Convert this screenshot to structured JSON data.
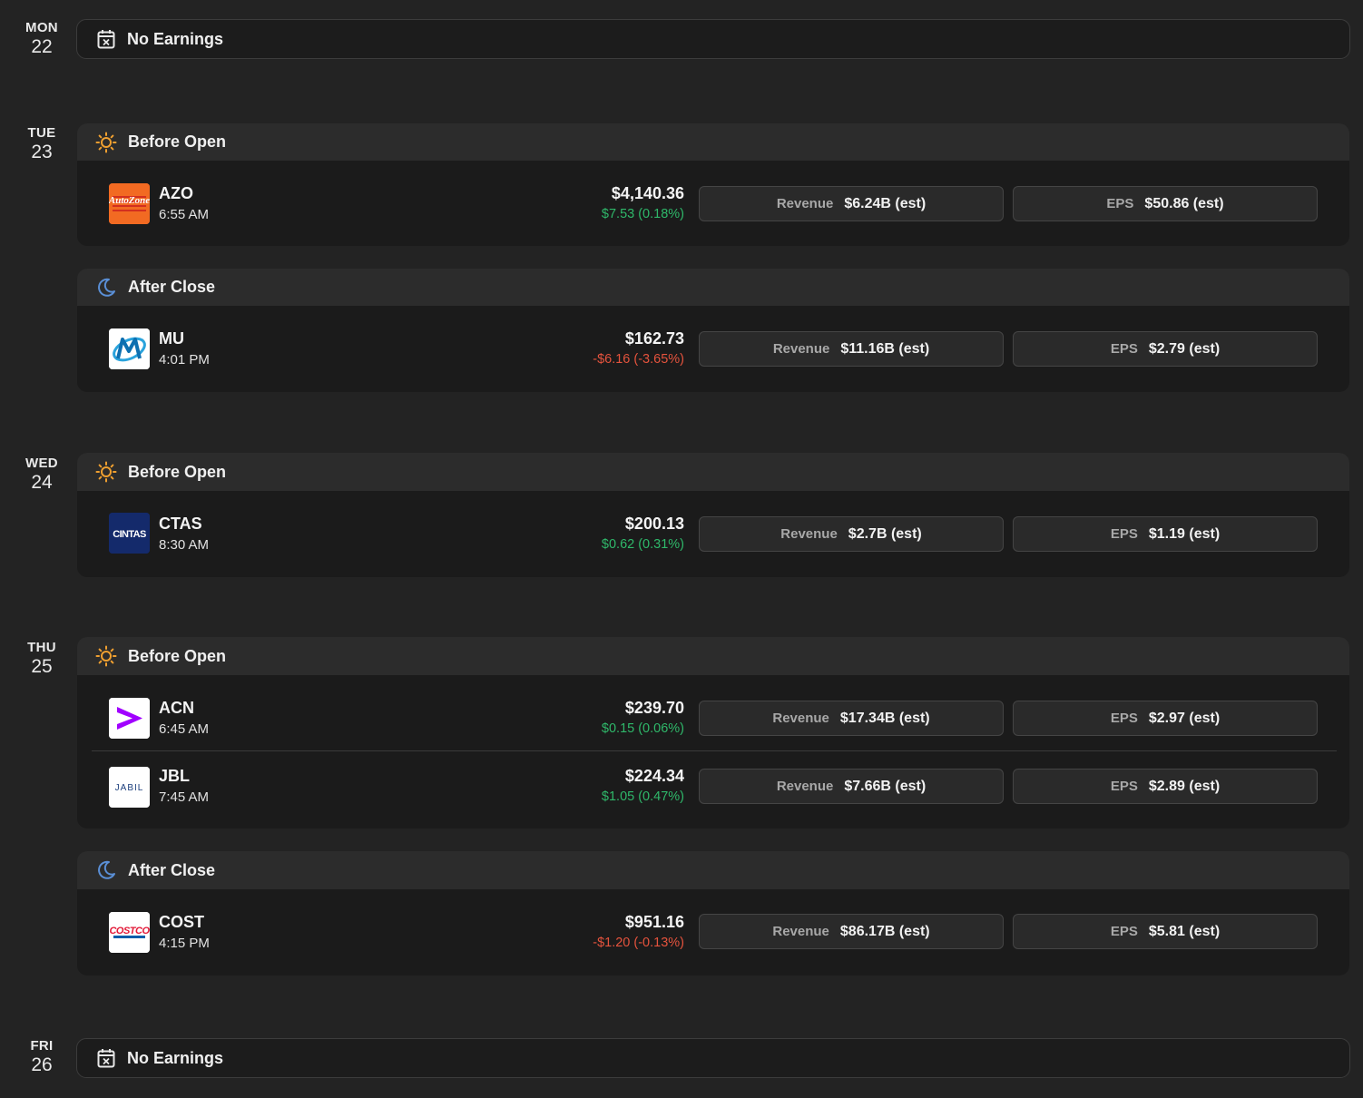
{
  "days": {
    "mon": {
      "dow": "MON",
      "num": "22",
      "no_earnings": "No Earnings"
    },
    "tue": {
      "dow": "TUE",
      "num": "23"
    },
    "wed": {
      "dow": "WED",
      "num": "24"
    },
    "thu": {
      "dow": "THU",
      "num": "25"
    },
    "fri": {
      "dow": "FRI",
      "num": "26",
      "no_earnings": "No Earnings"
    }
  },
  "labels": {
    "before_open": "Before Open",
    "after_close": "After Close",
    "revenue": "Revenue",
    "eps": "EPS"
  },
  "colors": {
    "positive": "#2fb86a",
    "negative": "#e5533d",
    "sun_icon": "#f0a030",
    "moon_icon": "#5a8fd6"
  },
  "stocks": {
    "azo": {
      "ticker": "AZO",
      "time": "6:55 AM",
      "price": "$4,140.36",
      "change": "$7.53 (0.18%)",
      "revenue": "$6.24B (est)",
      "eps": "$50.86 (est)",
      "logo_text": "AutoZone"
    },
    "mu": {
      "ticker": "MU",
      "time": "4:01 PM",
      "price": "$162.73",
      "change": "-$6.16 (-3.65%)",
      "revenue": "$11.16B (est)",
      "eps": "$2.79 (est)"
    },
    "ctas": {
      "ticker": "CTAS",
      "time": "8:30 AM",
      "price": "$200.13",
      "change": "$0.62 (0.31%)",
      "revenue": "$2.7B (est)",
      "eps": "$1.19 (est)",
      "logo_text": "CINTAS"
    },
    "acn": {
      "ticker": "ACN",
      "time": "6:45 AM",
      "price": "$239.70",
      "change": "$0.15 (0.06%)",
      "revenue": "$17.34B (est)",
      "eps": "$2.97 (est)"
    },
    "jbl": {
      "ticker": "JBL",
      "time": "7:45 AM",
      "price": "$224.34",
      "change": "$1.05 (0.47%)",
      "revenue": "$7.66B (est)",
      "eps": "$2.89 (est)",
      "logo_text": "JABIL"
    },
    "cost": {
      "ticker": "COST",
      "time": "4:15 PM",
      "price": "$951.16",
      "change": "-$1.20 (-0.13%)",
      "revenue": "$86.17B (est)",
      "eps": "$5.81 (est)",
      "logo_text": "COSTCO"
    }
  }
}
